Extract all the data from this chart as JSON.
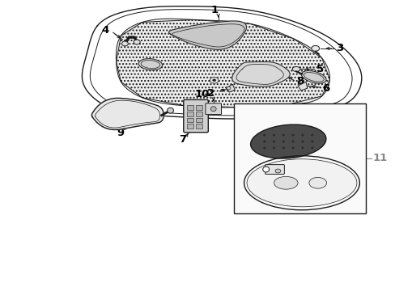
{
  "bg_color": "#ffffff",
  "line_color": "#1a1a1a",
  "label_color": "#000000",
  "fig_width": 4.89,
  "fig_height": 3.6,
  "dpi": 100,
  "gray_label_color": "#888888"
}
